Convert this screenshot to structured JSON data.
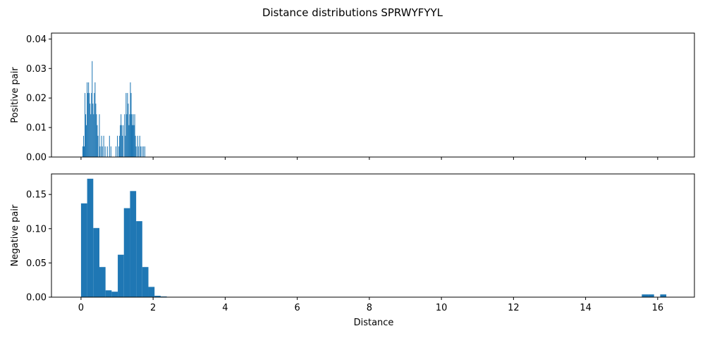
{
  "chart_data": {
    "title": "Distance distributions SPRWYFYYL",
    "xlabel": "Distance",
    "xlim": [
      -0.82,
      17.02
    ],
    "x_ticks": [
      0,
      2,
      4,
      6,
      8,
      10,
      12,
      14,
      16
    ],
    "shared_x": true,
    "bar_color": "#1f77b4",
    "panels": [
      {
        "type": "bar",
        "ylabel": "Positive pair",
        "ylim": [
          0,
          0.042
        ],
        "y_ticks": [
          0.0,
          0.01,
          0.02,
          0.03,
          0.04
        ],
        "y_tick_labels": [
          "0.00",
          "0.01",
          "0.02",
          "0.03",
          "0.04"
        ],
        "show_x_tick_labels": false,
        "bin_width": 0.02,
        "bars": [
          {
            "x": 0.04,
            "y": 0.0036
          },
          {
            "x": 0.06,
            "y": 0.0072
          },
          {
            "x": 0.08,
            "y": 0.0036
          },
          {
            "x": 0.1,
            "y": 0.0217
          },
          {
            "x": 0.12,
            "y": 0.0145
          },
          {
            "x": 0.14,
            "y": 0.0108
          },
          {
            "x": 0.16,
            "y": 0.0253
          },
          {
            "x": 0.18,
            "y": 0.0217
          },
          {
            "x": 0.2,
            "y": 0.0253
          },
          {
            "x": 0.22,
            "y": 0.0217
          },
          {
            "x": 0.24,
            "y": 0.0181
          },
          {
            "x": 0.26,
            "y": 0.0145
          },
          {
            "x": 0.28,
            "y": 0.0217
          },
          {
            "x": 0.3,
            "y": 0.0325
          },
          {
            "x": 0.32,
            "y": 0.0181
          },
          {
            "x": 0.34,
            "y": 0.0145
          },
          {
            "x": 0.36,
            "y": 0.0217
          },
          {
            "x": 0.38,
            "y": 0.0253
          },
          {
            "x": 0.4,
            "y": 0.0181
          },
          {
            "x": 0.42,
            "y": 0.0145
          },
          {
            "x": 0.44,
            "y": 0.0108
          },
          {
            "x": 0.46,
            "y": 0.0072
          },
          {
            "x": 0.5,
            "y": 0.0145
          },
          {
            "x": 0.52,
            "y": 0.0036
          },
          {
            "x": 0.56,
            "y": 0.0072
          },
          {
            "x": 0.58,
            "y": 0.0036
          },
          {
            "x": 0.62,
            "y": 0.0072
          },
          {
            "x": 0.66,
            "y": 0.0036
          },
          {
            "x": 0.72,
            "y": 0.0036
          },
          {
            "x": 0.78,
            "y": 0.0072
          },
          {
            "x": 0.82,
            "y": 0.0036
          },
          {
            "x": 0.96,
            "y": 0.0036
          },
          {
            "x": 1.0,
            "y": 0.0072
          },
          {
            "x": 1.04,
            "y": 0.0036
          },
          {
            "x": 1.06,
            "y": 0.0072
          },
          {
            "x": 1.08,
            "y": 0.0108
          },
          {
            "x": 1.1,
            "y": 0.0145
          },
          {
            "x": 1.12,
            "y": 0.0108
          },
          {
            "x": 1.14,
            "y": 0.0072
          },
          {
            "x": 1.16,
            "y": 0.0108
          },
          {
            "x": 1.2,
            "y": 0.0145
          },
          {
            "x": 1.22,
            "y": 0.0072
          },
          {
            "x": 1.24,
            "y": 0.0217
          },
          {
            "x": 1.26,
            "y": 0.0145
          },
          {
            "x": 1.28,
            "y": 0.0217
          },
          {
            "x": 1.3,
            "y": 0.0181
          },
          {
            "x": 1.32,
            "y": 0.0108
          },
          {
            "x": 1.34,
            "y": 0.0145
          },
          {
            "x": 1.36,
            "y": 0.0253
          },
          {
            "x": 1.38,
            "y": 0.0217
          },
          {
            "x": 1.4,
            "y": 0.0145
          },
          {
            "x": 1.42,
            "y": 0.0108
          },
          {
            "x": 1.44,
            "y": 0.0145
          },
          {
            "x": 1.46,
            "y": 0.0108
          },
          {
            "x": 1.48,
            "y": 0.0145
          },
          {
            "x": 1.5,
            "y": 0.0072
          },
          {
            "x": 1.52,
            "y": 0.0036
          },
          {
            "x": 1.56,
            "y": 0.0072
          },
          {
            "x": 1.58,
            "y": 0.0036
          },
          {
            "x": 1.62,
            "y": 0.0072
          },
          {
            "x": 1.64,
            "y": 0.0036
          },
          {
            "x": 1.68,
            "y": 0.0036
          },
          {
            "x": 1.72,
            "y": 0.0036
          },
          {
            "x": 1.76,
            "y": 0.0036
          }
        ]
      },
      {
        "type": "bar",
        "ylabel": "Negative pair",
        "ylim": [
          0,
          0.18
        ],
        "y_ticks": [
          0.0,
          0.05,
          0.1,
          0.15
        ],
        "y_tick_labels": [
          "0.00",
          "0.05",
          "0.10",
          "0.15"
        ],
        "show_x_tick_labels": true,
        "bin_width": 0.17,
        "bars": [
          {
            "x": 0.0,
            "y": 0.137
          },
          {
            "x": 0.17,
            "y": 0.173
          },
          {
            "x": 0.34,
            "y": 0.101
          },
          {
            "x": 0.51,
            "y": 0.044
          },
          {
            "x": 0.68,
            "y": 0.01
          },
          {
            "x": 0.85,
            "y": 0.008
          },
          {
            "x": 1.02,
            "y": 0.062
          },
          {
            "x": 1.19,
            "y": 0.13
          },
          {
            "x": 1.36,
            "y": 0.155
          },
          {
            "x": 1.53,
            "y": 0.111
          },
          {
            "x": 1.7,
            "y": 0.044
          },
          {
            "x": 1.87,
            "y": 0.015
          },
          {
            "x": 2.04,
            "y": 0.002
          },
          {
            "x": 2.21,
            "y": 0.001
          },
          {
            "x": 15.56,
            "y": 0.004
          },
          {
            "x": 15.73,
            "y": 0.004
          },
          {
            "x": 16.07,
            "y": 0.004
          }
        ]
      }
    ]
  }
}
